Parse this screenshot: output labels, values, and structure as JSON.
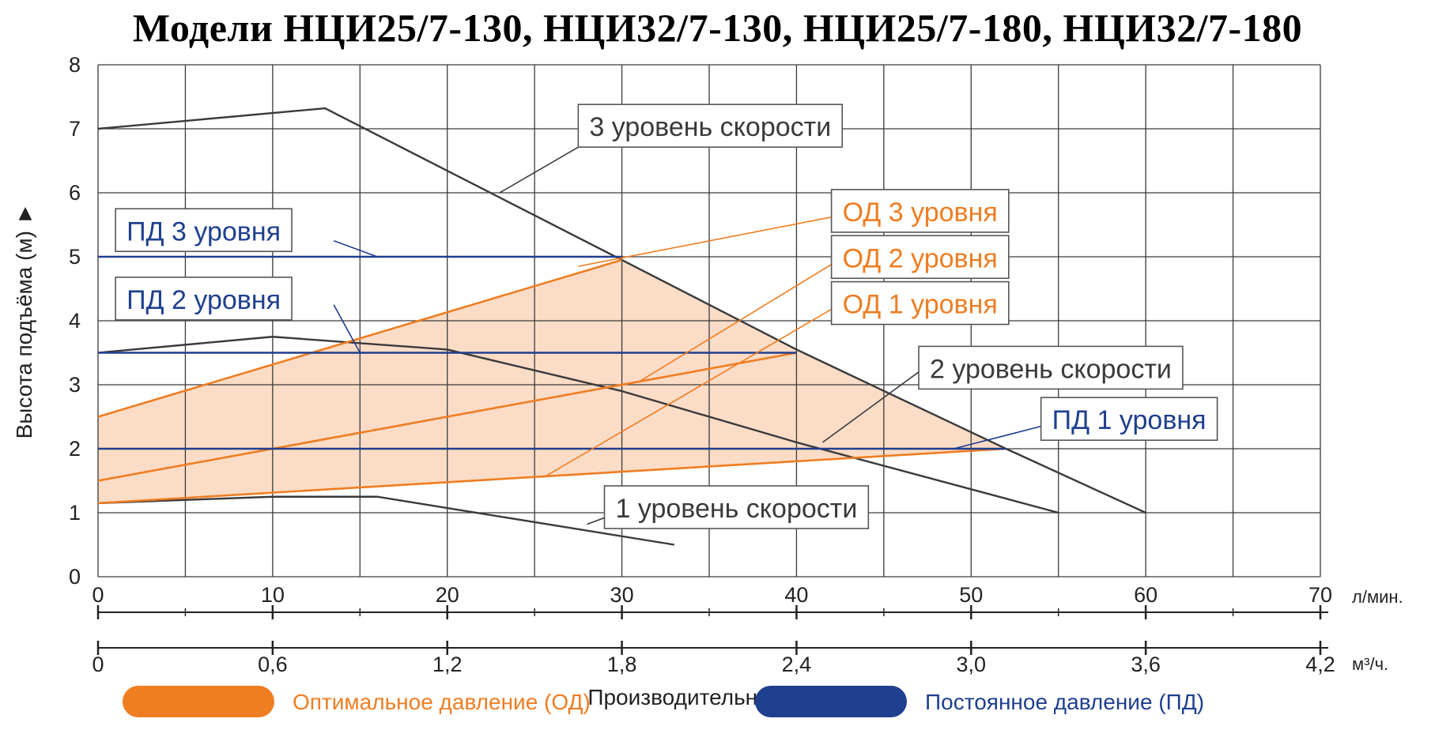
{
  "chart_data": {
    "type": "line",
    "title": "Модели НЦИ25/7-130, НЦИ32/7-130, НЦИ25/7-180, НЦИ32/7-180",
    "xlabel": "Производительность ►",
    "ylabel": "Высота подъёма (м) ►",
    "x_unit": "л/мин.",
    "x2_unit": "м³/ч.",
    "xlim": [
      0,
      70
    ],
    "ylim": [
      0,
      8
    ],
    "x_ticks": [
      "0",
      "10",
      "20",
      "30",
      "40",
      "50",
      "60",
      "70"
    ],
    "x2_ticks": [
      "0",
      "0,6",
      "1,2",
      "1,8",
      "2,4",
      "3,0",
      "3,6",
      "4,2"
    ],
    "y_ticks": [
      "0",
      "1",
      "2",
      "3",
      "4",
      "5",
      "6",
      "7",
      "8"
    ],
    "grid": true,
    "legend_position": "bottom",
    "colors": {
      "od": "#ef7d22",
      "pd": "#1f3f8f",
      "curve": "#3a3a3a",
      "area": "#fbdcc6"
    },
    "series": [
      {
        "name": "1 уровень скорости",
        "group": "curve",
        "x": [
          0,
          10,
          16,
          33
        ],
        "y": [
          1.15,
          1.25,
          1.25,
          0.5
        ]
      },
      {
        "name": "2 уровень скорости",
        "group": "curve",
        "x": [
          0,
          10,
          20,
          30,
          40,
          55
        ],
        "y": [
          3.5,
          3.75,
          3.55,
          2.9,
          2.1,
          1.0
        ]
      },
      {
        "name": "3 уровень скорости",
        "group": "curve",
        "x": [
          0,
          13,
          30,
          40,
          52,
          60
        ],
        "y": [
          7.0,
          7.32,
          4.95,
          3.55,
          2.0,
          1.0
        ]
      },
      {
        "name": "ОД 1 уровня",
        "group": "od",
        "x": [
          0,
          52
        ],
        "y": [
          1.15,
          2.0
        ]
      },
      {
        "name": "ОД 2 уровня",
        "group": "od",
        "x": [
          0,
          40
        ],
        "y": [
          1.5,
          3.5
        ]
      },
      {
        "name": "ОД 3 уровня",
        "group": "od",
        "x": [
          0,
          30
        ],
        "y": [
          2.5,
          4.95
        ]
      },
      {
        "name": "ПД 1 уровня",
        "group": "pd",
        "x": [
          0,
          52
        ],
        "y": [
          2.0,
          2.0
        ]
      },
      {
        "name": "ПД 2 уровня",
        "group": "pd",
        "x": [
          0,
          40
        ],
        "y": [
          3.5,
          3.5
        ]
      },
      {
        "name": "ПД 3 уровня",
        "group": "pd",
        "x": [
          0,
          30
        ],
        "y": [
          5.0,
          5.0
        ]
      }
    ],
    "od_area": {
      "x": [
        0,
        30,
        40,
        52,
        0
      ],
      "y": [
        2.5,
        4.95,
        3.55,
        2.0,
        1.15
      ]
    },
    "callouts": [
      {
        "label": "3 уровень скорости",
        "color": "curve",
        "box": [
          27.5,
          7.38
        ],
        "line_from": [
          29.0,
          6.95
        ],
        "line_to": [
          23.0,
          6.0
        ]
      },
      {
        "label": "ОД 3 уровня",
        "color": "od",
        "box": [
          42.0,
          6.05
        ],
        "line_from": [
          42.0,
          5.62
        ],
        "line_to": [
          27.5,
          4.85
        ]
      },
      {
        "label": "ОД 2 уровня",
        "color": "od",
        "box": [
          42.0,
          5.33
        ],
        "line_from": [
          42.0,
          4.88
        ],
        "line_to": [
          31.0,
          3.05
        ]
      },
      {
        "label": "ОД 1 уровня",
        "color": "od",
        "box": [
          42.0,
          4.61
        ],
        "line_from": [
          42.0,
          4.18
        ],
        "line_to": [
          25.5,
          1.55
        ]
      },
      {
        "label": "2 уровень скорости",
        "color": "curve",
        "box": [
          47.0,
          3.6
        ],
        "line_from": [
          47.0,
          3.2
        ],
        "line_to": [
          41.5,
          2.1
        ]
      },
      {
        "label": "ПД 1 уровня",
        "color": "pd",
        "box": [
          54.0,
          2.8
        ],
        "line_from": [
          54.0,
          2.35
        ],
        "line_to": [
          49.0,
          2.0
        ]
      },
      {
        "label": "ПД 3 уровня",
        "color": "pd",
        "box": [
          1.0,
          5.75
        ],
        "line_from": [
          13.5,
          5.25
        ],
        "line_to": [
          16.0,
          5.0
        ]
      },
      {
        "label": "ПД 2 уровня",
        "color": "pd",
        "box": [
          1.0,
          4.68
        ],
        "line_from": [
          13.5,
          4.25
        ],
        "line_to": [
          15.0,
          3.5
        ]
      },
      {
        "label": "1 уровень скорости",
        "color": "curve",
        "box": [
          29.0,
          1.42
        ],
        "line_from": [
          29.5,
          0.97
        ],
        "line_to": [
          28.0,
          0.82
        ]
      }
    ],
    "legend": [
      {
        "label": "Оптимальное давление (ОД)",
        "color": "od"
      },
      {
        "label": "Постоянное давление (ПД)",
        "color": "pd"
      }
    ]
  }
}
